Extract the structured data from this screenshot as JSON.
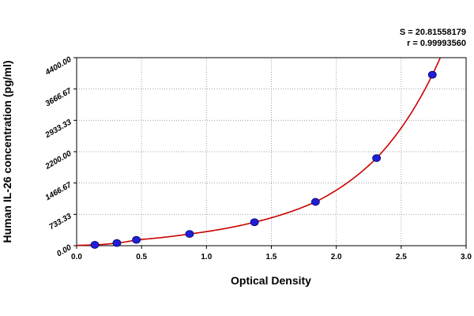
{
  "chart_data": {
    "type": "scatter",
    "title": "",
    "xlabel": "Optical Density",
    "ylabel": "Human IL-26 concentration (pg/ml)",
    "xlim": [
      0.0,
      3.0
    ],
    "ylim": [
      0.0,
      4400.0
    ],
    "x_ticks": [
      "0.0",
      "0.5",
      "1.0",
      "1.5",
      "2.0",
      "2.5",
      "3.0"
    ],
    "y_ticks": [
      "0.00",
      "733.33",
      "1466.67",
      "2200.00",
      "2933.33",
      "3666.67",
      "4400.00"
    ],
    "grid": true,
    "annotations": [
      "S = 20.81558179",
      "r = 0.99993560"
    ],
    "points": {
      "x": [
        0.14,
        0.31,
        0.46,
        0.87,
        1.37,
        1.84,
        2.31,
        2.74
      ],
      "y": [
        20,
        62,
        137,
        275,
        550,
        1025,
        2050,
        4000
      ]
    },
    "colors": {
      "curve": "#cc0000",
      "point": "#1f1fd6",
      "grid": "#a0a0a0"
    }
  }
}
